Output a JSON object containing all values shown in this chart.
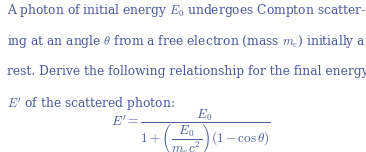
{
  "background_color": "#ffffff",
  "text_color": "#4a5a9a",
  "body_lines": [
    "A photon of initial energy $E_0$ undergoes Compton scatter-",
    "ing at an angle $\\theta$ from a free electron (mass $m_e$) initially at",
    "rest. Derive the following relationship for the final energy",
    "$E'$ of the scattered photon:"
  ],
  "formula": "$E' = \\dfrac{E_0}{1 + \\left(\\dfrac{E_0}{m_e c^2}\\right)(1 - \\cos\\theta)}$",
  "font_size_body": 8.8,
  "font_size_formula": 9.5,
  "fig_width": 3.66,
  "fig_height": 1.52,
  "dpi": 100
}
